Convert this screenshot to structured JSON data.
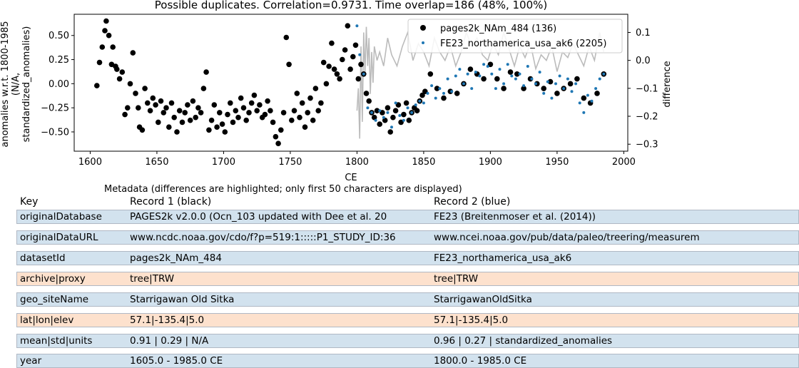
{
  "chart_data": {
    "type": "scatter",
    "title": "Possible duplicates. Correlation=0.9731. Time overlap=186 (48%, 100%)",
    "xlabel": "CE",
    "ylabel": "anomalies w.r.t. 1800-1985 (N/A, standardized_anomalies)",
    "ylabel_lines": [
      "anomalies w.r.t. 1800-1985",
      "(N/A,",
      "standardized_anomalies)"
    ],
    "y2label": "difference",
    "xlim": [
      1588,
      2003
    ],
    "ylim": [
      -0.7,
      0.72
    ],
    "y2lim": [
      -0.325,
      0.165
    ],
    "xticks": [
      1600,
      1650,
      1700,
      1750,
      1800,
      1850,
      1900,
      1950,
      2000
    ],
    "yticks": [
      -0.5,
      -0.25,
      0.0,
      0.25,
      0.5
    ],
    "ytick_labels": [
      "−0.50",
      "−0.25",
      "0.00",
      "0.25",
      "0.50"
    ],
    "y2ticks": [
      -0.3,
      -0.2,
      -0.1,
      0.0,
      0.1
    ],
    "y2tick_labels": [
      "−0.3",
      "−0.2",
      "−0.1",
      "0.0",
      "0.1"
    ],
    "grid": false,
    "legend_placement": "top-right",
    "series": [
      {
        "name": "pages2k_NAm_484 (136)",
        "color": "#000000",
        "marker": "circle",
        "x": [
          1605,
          1607,
          1609,
          1611,
          1612,
          1614,
          1616,
          1617,
          1619,
          1620,
          1622,
          1624,
          1626,
          1628,
          1630,
          1632,
          1634,
          1636,
          1637,
          1639,
          1641,
          1643,
          1645,
          1647,
          1649,
          1651,
          1653,
          1655,
          1657,
          1659,
          1661,
          1663,
          1665,
          1667,
          1669,
          1671,
          1673,
          1675,
          1677,
          1679,
          1681,
          1683,
          1685,
          1687,
          1689,
          1691,
          1693,
          1695,
          1697,
          1699,
          1701,
          1703,
          1705,
          1707,
          1709,
          1711,
          1713,
          1715,
          1717,
          1719,
          1721,
          1723,
          1725,
          1727,
          1729,
          1731,
          1733,
          1735,
          1737,
          1739,
          1741,
          1743,
          1745,
          1747,
          1749,
          1751,
          1753,
          1755,
          1757,
          1759,
          1761,
          1763,
          1765,
          1767,
          1769,
          1771,
          1773,
          1775,
          1777,
          1779,
          1781,
          1783,
          1785,
          1787,
          1789,
          1791,
          1793,
          1795,
          1797,
          1799,
          1801,
          1803,
          1805,
          1807,
          1809,
          1811,
          1813,
          1815,
          1817,
          1819,
          1821,
          1823,
          1825,
          1827,
          1829,
          1831,
          1833,
          1835,
          1837,
          1839,
          1841,
          1843,
          1845,
          1847,
          1849,
          1851,
          1855,
          1860,
          1865,
          1870,
          1875,
          1880,
          1885,
          1890,
          1895,
          1900,
          1905,
          1910,
          1915,
          1920,
          1925,
          1930,
          1935,
          1940,
          1945,
          1950,
          1955,
          1960,
          1965,
          1970,
          1975,
          1980,
          1985
        ],
        "y": [
          -0.02,
          0.22,
          0.38,
          0.55,
          0.65,
          0.5,
          0.2,
          0.38,
          0.18,
          0.15,
          0.05,
          0.12,
          -0.32,
          -0.25,
          0.0,
          0.32,
          -0.1,
          -0.25,
          -0.45,
          -0.48,
          -0.05,
          -0.2,
          -0.28,
          -0.15,
          -0.22,
          -0.4,
          -0.18,
          -0.3,
          -0.25,
          -0.45,
          -0.2,
          -0.35,
          -0.5,
          -0.28,
          -0.4,
          -0.3,
          -0.22,
          -0.38,
          -0.18,
          -0.35,
          -0.25,
          -0.3,
          -0.05,
          0.12,
          -0.48,
          -0.38,
          -0.22,
          -0.45,
          -0.3,
          -0.42,
          -0.5,
          -0.32,
          -0.2,
          -0.4,
          -0.28,
          -0.35,
          -0.15,
          -0.25,
          -0.38,
          -0.3,
          -0.2,
          -0.12,
          -0.28,
          -0.22,
          -0.35,
          -0.32,
          -0.18,
          -0.28,
          -0.4,
          -0.55,
          -0.62,
          -0.48,
          -0.3,
          0.48,
          0.2,
          -0.38,
          -0.28,
          -0.1,
          -0.35,
          -0.2,
          -0.45,
          -0.3,
          -0.15,
          -0.38,
          -0.05,
          -0.28,
          -0.2,
          0.22,
          0.0,
          0.18,
          0.42,
          0.15,
          0.1,
          0.05,
          0.25,
          0.35,
          0.6,
          0.15,
          0.28,
          0.4,
          0.05,
          0.2,
          0.1,
          -0.1,
          -0.18,
          -0.3,
          -0.35,
          -0.28,
          -0.42,
          -0.3,
          -0.38,
          -0.25,
          -0.5,
          -0.35,
          -0.28,
          -0.22,
          -0.4,
          -0.32,
          -0.2,
          -0.38,
          -0.3,
          -0.25,
          -0.28,
          -0.18,
          -0.12,
          -0.08,
          0.1,
          -0.05,
          -0.15,
          -0.08,
          -0.1,
          0.0,
          0.15,
          0.1,
          0.05,
          0.2,
          0.05,
          -0.05,
          0.12,
          0.1,
          -0.05,
          0.05,
          0.0,
          -0.05,
          0.02,
          -0.1,
          -0.05,
          0.0,
          0.05,
          -0.15,
          -0.2,
          -0.1,
          0.1
        ]
      },
      {
        "name": "FE23_northamerica_usa_ak6 (2205)",
        "color": "#1f77b4",
        "marker": "small-dot",
        "x": [
          1800,
          1802,
          1805,
          1808,
          1811,
          1814,
          1817,
          1820,
          1823,
          1826,
          1829,
          1832,
          1835,
          1838,
          1841,
          1844,
          1847,
          1850,
          1853,
          1856,
          1859,
          1862,
          1865,
          1868,
          1871,
          1874,
          1877,
          1880,
          1883,
          1886,
          1889,
          1892,
          1895,
          1898,
          1901,
          1904,
          1907,
          1910,
          1913,
          1916,
          1919,
          1922,
          1925,
          1928,
          1931,
          1934,
          1937,
          1940,
          1943,
          1946,
          1949,
          1952,
          1955,
          1958,
          1961,
          1964,
          1967,
          1970,
          1973,
          1976,
          1979,
          1982,
          1985
        ],
        "y": [
          0.6,
          0.3,
          0.1,
          -0.25,
          -0.3,
          -0.38,
          -0.28,
          -0.35,
          -0.3,
          -0.45,
          -0.2,
          -0.33,
          -0.38,
          -0.25,
          -0.3,
          -0.22,
          -0.18,
          -0.2,
          -0.1,
          -0.02,
          -0.15,
          -0.05,
          -0.1,
          0.05,
          -0.08,
          0.08,
          0.15,
          0.0,
          0.1,
          -0.05,
          0.12,
          0.08,
          0.2,
          0.18,
          0.1,
          -0.05,
          0.15,
          0.0,
          0.2,
          0.08,
          0.05,
          0.1,
          -0.02,
          0.18,
          0.05,
          0.0,
          0.12,
          -0.1,
          0.02,
          -0.15,
          0.0,
          0.08,
          -0.05,
          0.05,
          -0.08,
          0.0,
          -0.2,
          -0.3,
          -0.12,
          -0.18,
          -0.05,
          0.05,
          0.1
        ]
      },
      {
        "name": "difference",
        "color": "#bbbbbb",
        "marker": "line",
        "axis": "right",
        "x": [
          1800,
          1801,
          1802,
          1803,
          1804,
          1805,
          1806,
          1807,
          1808,
          1809,
          1810,
          1811,
          1812,
          1813,
          1815,
          1817,
          1820,
          1823,
          1826,
          1830,
          1834,
          1838,
          1842,
          1846,
          1850,
          1854,
          1858,
          1862,
          1866,
          1870,
          1874,
          1878,
          1882,
          1886,
          1890,
          1894,
          1898,
          1902,
          1906,
          1910,
          1914,
          1918,
          1922,
          1926,
          1930,
          1934,
          1938,
          1942,
          1946,
          1950,
          1954,
          1958,
          1962,
          1966,
          1970,
          1974,
          1978,
          1982,
          1985
        ],
        "y": [
          -0.18,
          -0.1,
          -0.28,
          0.05,
          -0.22,
          0.1,
          -0.05,
          0.12,
          -0.02,
          0.08,
          -0.12,
          0.03,
          -0.08,
          0.05,
          0.0,
          0.03,
          -0.02,
          0.08,
          0.02,
          -0.02,
          0.05,
          0.1,
          0.0,
          0.06,
          0.03,
          -0.02,
          0.08,
          0.03,
          0.0,
          0.05,
          -0.02,
          0.03,
          0.1,
          0.05,
          0.08,
          0.02,
          0.0,
          0.06,
          0.02,
          0.1,
          0.04,
          -0.02,
          0.05,
          0.01,
          0.06,
          -0.03,
          0.02,
          0.0,
          0.05,
          -0.04,
          0.03,
          0.01,
          0.06,
          0.02,
          -0.02,
          0.05,
          0.0,
          0.1,
          0.03
        ]
      }
    ]
  },
  "metadata": {
    "title": "Metadata (differences are highlighted; only first 50 characters are displayed)",
    "headers": {
      "key": "Key",
      "record1": "Record 1 (black)",
      "record2": "Record 2 (blue)"
    },
    "rows": [
      {
        "key": "originalDatabase",
        "record1": "PAGES2k v2.0.0 (Ocn_103 updated with Dee et al. 20",
        "record2": "FE23 (Breitenmoser et al. (2014))",
        "status": "same"
      },
      {
        "key": "originalDataURL",
        "record1": "www.ncdc.noaa.gov/cdo/f?p=519:1:::::P1_STUDY_ID:36",
        "record2": "www.ncei.noaa.gov/pub/data/paleo/treering/measurem",
        "status": "same"
      },
      {
        "key": "datasetId",
        "record1": "pages2k_NAm_484",
        "record2": "FE23_northamerica_usa_ak6",
        "status": "same"
      },
      {
        "key": "archive|proxy",
        "record1": "tree|TRW",
        "record2": "tree|TRW",
        "status": "diff"
      },
      {
        "key": "geo_siteName",
        "record1": "Starrigawan  Old Sitka",
        "record2": "StarrigawanOldSitka",
        "status": "same"
      },
      {
        "key": "lat|lon|elev",
        "record1": "57.1|-135.4|5.0",
        "record2": "57.1|-135.4|5.0",
        "status": "diff"
      },
      {
        "key": "mean|std|units",
        "record1": "0.91 | 0.29 | N/A",
        "record2": "0.96 | 0.27 | standardized_anomalies",
        "status": "same"
      },
      {
        "key": "year",
        "record1": "1605.0 - 1985.0 CE",
        "record2": "1800.0 - 1985.0 CE",
        "status": "same"
      }
    ]
  }
}
